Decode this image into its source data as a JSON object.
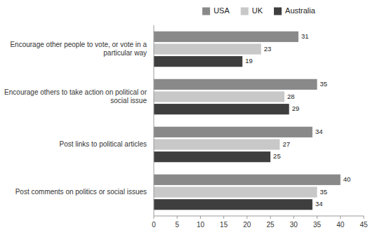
{
  "chart_data": {
    "type": "bar",
    "orientation": "horizontal",
    "categories": [
      "Post comments on politics or social issues",
      "Post links to political articles",
      "Encourage others to take action on political or\nsocial issue",
      "Encourage other people to vote, or vote in a\nparticular way"
    ],
    "series": [
      {
        "name": "USA",
        "color": "#898989",
        "values": [
          40,
          34,
          35,
          31
        ]
      },
      {
        "name": "UK",
        "color": "#c8c8c8",
        "values": [
          35,
          27,
          28,
          23
        ]
      },
      {
        "name": "Australia",
        "color": "#3e3e3e",
        "values": [
          34,
          25,
          29,
          19
        ]
      }
    ],
    "xlim": [
      0,
      45
    ],
    "xticks": [
      0,
      5,
      10,
      15,
      20,
      25,
      30,
      35,
      40,
      45
    ],
    "data_labels": true,
    "legend": "top",
    "grid": false
  }
}
